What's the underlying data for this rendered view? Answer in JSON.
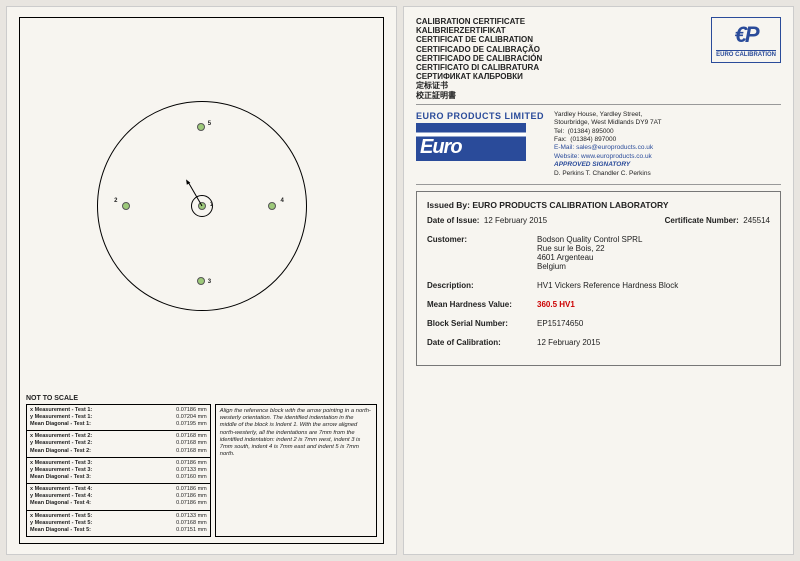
{
  "left": {
    "not_to_scale": "NOT TO SCALE",
    "dots": {
      "1": "1",
      "2": "2",
      "3": "3",
      "4": "4",
      "5": "5"
    },
    "measurements": [
      {
        "x_lbl": "x Measurement - Test 1:",
        "x_val": "0.07186 mm",
        "y_lbl": "y Measurement - Test 1:",
        "y_val": "0.07204 mm",
        "m_lbl": "Mean Diagonal - Test 1:",
        "m_val": "0.07195 mm"
      },
      {
        "x_lbl": "x Measurement - Test 2:",
        "x_val": "0.07168 mm",
        "y_lbl": "y Measurement - Test 2:",
        "y_val": "0.07168 mm",
        "m_lbl": "Mean Diagonal - Test 2:",
        "m_val": "0.07168 mm"
      },
      {
        "x_lbl": "x Measurement - Test 3:",
        "x_val": "0.07186 mm",
        "y_lbl": "y Measurement - Test 3:",
        "y_val": "0.07133 mm",
        "m_lbl": "Mean Diagonal - Test 3:",
        "m_val": "0.07160 mm"
      },
      {
        "x_lbl": "x Measurement - Test 4:",
        "x_val": "0.07186 mm",
        "y_lbl": "y Measurement - Test 4:",
        "y_val": "0.07186 mm",
        "m_lbl": "Mean Diagonal - Test 4:",
        "m_val": "0.07186 mm"
      },
      {
        "x_lbl": "x Measurement - Test 5:",
        "x_val": "0.07133 mm",
        "y_lbl": "y Measurement - Test 5:",
        "y_val": "0.07168 mm",
        "m_lbl": "Mean Diagonal - Test 5:",
        "m_val": "0.07151 mm"
      }
    ],
    "instructions": "Align the reference block with the arrow pointing in a north-westerly orientation. The identified indentation in the middle of the block is Indent 1. With the arrow aligned north-westerly, all the indentations are 7mm from the identified indentation: indent 2 is 7mm west, indent 3 is 7mm south, indent 4 is 7mm east and indent 5 is 7mm north."
  },
  "right": {
    "titles": [
      "CALIBRATION CERTIFICATE",
      "KALIBRIERZERTIFIKAT",
      "CERTIFICAT DE CALIBRATION",
      "CERTIFICADO DE CALIBRAÇÃO",
      "CERTIFICADO DE CALIBRACIÓN",
      "CERTIFICATO DI CALIBRATURA",
      "СЕРТИФИКАТ КАЛБРОВКИ",
      "定标证书",
      "校正証明書"
    ],
    "badge": {
      "symbol": "€P",
      "label": "EURO CALIBRATION"
    },
    "company_title": "EURO PRODUCTS LIMITED",
    "logo_text": "Euro",
    "address": {
      "l1": "Yardley House, Yardley Street,",
      "l2": "Stourbridge, West Midlands DY9 7AT",
      "tel_lbl": "Tel:",
      "tel": "(01384) 895000",
      "fax_lbl": "Fax:",
      "fax": "(01384) 897000",
      "email_lbl": "E-Mail:",
      "email": "sales@europroducts.co.uk",
      "web_lbl": "Website:",
      "web": "www.europroducts.co.uk",
      "approved": "APPROVED SIGNATORY",
      "sigs": "D. Perkins     T. Chandler     C. Perkins"
    },
    "issued_by_lbl": "Issued By:",
    "issued_by": "EURO PRODUCTS CALIBRATION LABORATORY",
    "date_issue_lbl": "Date of Issue:",
    "date_issue": "12 February 2015",
    "cert_no_lbl": "Certificate Number:",
    "cert_no": "245514",
    "customer_lbl": "Customer:",
    "customer": {
      "l1": "Bodson Quality Control SPRL",
      "l2": "Rue sur le Bois, 22",
      "l3": "4601 Argenteau",
      "l4": "Belgium"
    },
    "desc_lbl": "Description:",
    "desc": "HV1  Vickers Reference Hardness Block",
    "mean_lbl": "Mean Hardness Value:",
    "mean": "360.5 HV1",
    "serial_lbl": "Block Serial Number:",
    "serial": "EP15174650",
    "cal_date_lbl": "Date of Calibration:",
    "cal_date": "12 February 2015"
  }
}
